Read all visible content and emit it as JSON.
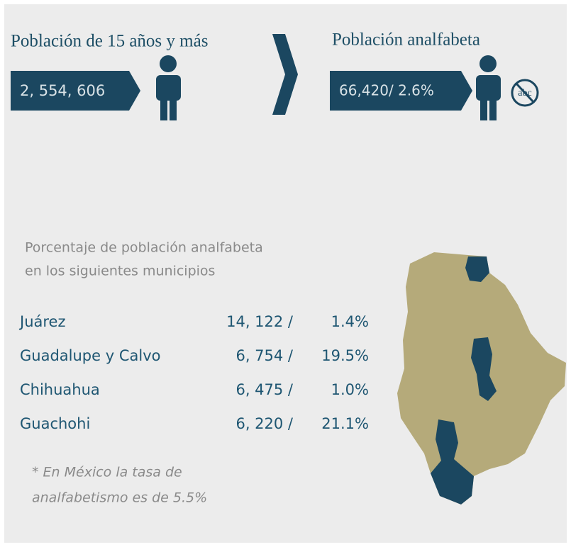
{
  "header": {
    "left": {
      "title": "Población de 15 años y más",
      "value": "2, 554, 606"
    },
    "right": {
      "title": "Población analfabeta",
      "value": "66,420/ 2.6%",
      "icon_label": "abc"
    }
  },
  "section": {
    "title_lines": [
      "Porcentaje de población analfabeta",
      "en los siguientes municipios"
    ]
  },
  "table": {
    "rows": [
      [
        "Juárez",
        "14, 122 /",
        "1.4%"
      ],
      [
        "Guadalupe y Calvo",
        "6, 754 /",
        "19.5%"
      ],
      [
        "Chihuahua",
        "6, 475 /",
        "1.0%"
      ],
      [
        "Guachohi",
        "6, 220 /",
        "21.1%"
      ]
    ]
  },
  "note": {
    "lines": [
      "* En México la tasa de",
      "analfabetismo es de 5.5%"
    ]
  }
}
